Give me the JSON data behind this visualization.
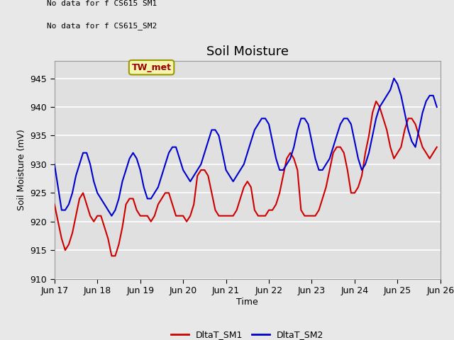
{
  "title": "Soil Moisture",
  "ylabel": "Soil Moisture (mV)",
  "xlabel": "Time",
  "ylim": [
    910,
    948
  ],
  "yticks": [
    910,
    915,
    920,
    925,
    930,
    935,
    940,
    945
  ],
  "xtick_labels": [
    "Jun 17",
    "Jun 18",
    "Jun 19",
    "Jun 20",
    "Jun 21",
    "Jun 22",
    "Jun 23",
    "Jun 24",
    "Jun 25",
    "Jun 26"
  ],
  "no_data_text1": "No data for f CS615 SM1",
  "no_data_text2": "No data for f CS615_SM2",
  "legend_box_label": "TW_met",
  "legend_entries": [
    "DltaT_SM1",
    "DltaT_SM2"
  ],
  "line_colors": [
    "#cc0000",
    "#0000cc"
  ],
  "fig_bg_color": "#e8e8e8",
  "plot_bg_color": "#e0e0e0",
  "grid_color": "#ffffff",
  "title_fontsize": 13,
  "label_fontsize": 9,
  "tick_fontsize": 9,
  "sm1_x": [
    0.0,
    0.083,
    0.167,
    0.25,
    0.333,
    0.417,
    0.5,
    0.583,
    0.667,
    0.75,
    0.833,
    0.917,
    1.0,
    1.083,
    1.167,
    1.25,
    1.333,
    1.417,
    1.5,
    1.583,
    1.667,
    1.75,
    1.833,
    1.917,
    2.0,
    2.083,
    2.167,
    2.25,
    2.333,
    2.417,
    2.5,
    2.583,
    2.667,
    2.75,
    2.833,
    2.917,
    3.0,
    3.083,
    3.167,
    3.25,
    3.333,
    3.417,
    3.5,
    3.583,
    3.667,
    3.75,
    3.833,
    3.917,
    4.0,
    4.083,
    4.167,
    4.25,
    4.333,
    4.417,
    4.5,
    4.583,
    4.667,
    4.75,
    4.833,
    4.917,
    5.0,
    5.083,
    5.167,
    5.25,
    5.333,
    5.417,
    5.5,
    5.583,
    5.667,
    5.75,
    5.833,
    5.917,
    6.0,
    6.083,
    6.167,
    6.25,
    6.333,
    6.417,
    6.5,
    6.583,
    6.667,
    6.75,
    6.833,
    6.917,
    7.0,
    7.083,
    7.167,
    7.25,
    7.333,
    7.417,
    7.5,
    7.583,
    7.667,
    7.75,
    7.833,
    7.917,
    8.0,
    8.083,
    8.167,
    8.25,
    8.333,
    8.417,
    8.5,
    8.583,
    8.667,
    8.75,
    8.833,
    8.917
  ],
  "sm1_y": [
    923,
    920,
    917,
    915,
    916,
    918,
    921,
    924,
    925,
    923,
    921,
    920,
    921,
    921,
    919,
    917,
    914,
    914,
    916,
    919,
    923,
    924,
    924,
    922,
    921,
    921,
    921,
    920,
    921,
    923,
    924,
    925,
    925,
    923,
    921,
    921,
    921,
    920,
    921,
    923,
    928,
    929,
    929,
    928,
    925,
    922,
    921,
    921,
    921,
    921,
    921,
    922,
    924,
    926,
    927,
    926,
    922,
    921,
    921,
    921,
    922,
    922,
    923,
    925,
    928,
    931,
    932,
    931,
    929,
    922,
    921,
    921,
    921,
    921,
    922,
    924,
    926,
    929,
    932,
    933,
    933,
    932,
    929,
    925,
    925,
    926,
    928,
    932,
    935,
    939,
    941,
    940,
    938,
    936,
    933,
    931,
    932,
    933,
    936,
    938,
    938,
    937,
    935,
    933,
    932,
    931,
    932,
    933
  ],
  "sm2_x": [
    0.0,
    0.083,
    0.167,
    0.25,
    0.333,
    0.417,
    0.5,
    0.583,
    0.667,
    0.75,
    0.833,
    0.917,
    1.0,
    1.083,
    1.167,
    1.25,
    1.333,
    1.417,
    1.5,
    1.583,
    1.667,
    1.75,
    1.833,
    1.917,
    2.0,
    2.083,
    2.167,
    2.25,
    2.333,
    2.417,
    2.5,
    2.583,
    2.667,
    2.75,
    2.833,
    2.917,
    3.0,
    3.083,
    3.167,
    3.25,
    3.333,
    3.417,
    3.5,
    3.583,
    3.667,
    3.75,
    3.833,
    3.917,
    4.0,
    4.083,
    4.167,
    4.25,
    4.333,
    4.417,
    4.5,
    4.583,
    4.667,
    4.75,
    4.833,
    4.917,
    5.0,
    5.083,
    5.167,
    5.25,
    5.333,
    5.417,
    5.5,
    5.583,
    5.667,
    5.75,
    5.833,
    5.917,
    6.0,
    6.083,
    6.167,
    6.25,
    6.333,
    6.417,
    6.5,
    6.583,
    6.667,
    6.75,
    6.833,
    6.917,
    7.0,
    7.083,
    7.167,
    7.25,
    7.333,
    7.417,
    7.5,
    7.583,
    7.667,
    7.75,
    7.833,
    7.917,
    8.0,
    8.083,
    8.167,
    8.25,
    8.333,
    8.417,
    8.5,
    8.583,
    8.667,
    8.75,
    8.833,
    8.917
  ],
  "sm2_y": [
    930,
    926,
    922,
    922,
    923,
    925,
    928,
    930,
    932,
    932,
    930,
    927,
    925,
    924,
    923,
    922,
    921,
    922,
    924,
    927,
    929,
    931,
    932,
    931,
    929,
    926,
    924,
    924,
    925,
    926,
    928,
    930,
    932,
    933,
    933,
    931,
    929,
    928,
    927,
    928,
    929,
    930,
    932,
    934,
    936,
    936,
    935,
    932,
    929,
    928,
    927,
    928,
    929,
    930,
    932,
    934,
    936,
    937,
    938,
    938,
    937,
    934,
    931,
    929,
    929,
    930,
    931,
    933,
    936,
    938,
    938,
    937,
    934,
    931,
    929,
    929,
    930,
    931,
    933,
    935,
    937,
    938,
    938,
    937,
    934,
    931,
    929,
    930,
    932,
    935,
    938,
    940,
    941,
    942,
    943,
    945,
    944,
    942,
    939,
    936,
    934,
    933,
    936,
    939,
    941,
    942,
    942,
    940
  ]
}
